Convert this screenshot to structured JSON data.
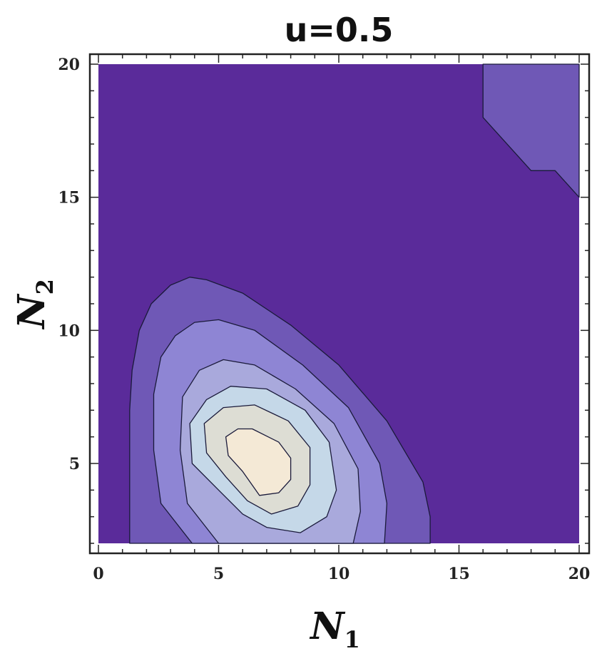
{
  "chart_data": {
    "type": "contour",
    "title": "u=0.5",
    "xlabel": "N",
    "xlabel_subscript": "1",
    "ylabel": "N",
    "ylabel_subscript": "2",
    "xlim": [
      0,
      20
    ],
    "ylim": [
      2,
      20
    ],
    "xticks": [
      "0",
      "5",
      "10",
      "15",
      "20"
    ],
    "yticks": [
      "5",
      "10",
      "15",
      "20"
    ],
    "grid": false,
    "colors": {
      "background": "#5a2b9a",
      "levels": [
        "#6f58b6",
        "#8e85d4",
        "#a9a9dc",
        "#c5d8e8",
        "#ddddd4",
        "#f4e9d6"
      ],
      "contour_line": "#1a1a3a"
    },
    "contours": [
      {
        "level": 1,
        "points": [
          [
            1.3,
            2
          ],
          [
            1.3,
            7
          ],
          [
            1.4,
            8.5
          ],
          [
            1.7,
            10
          ],
          [
            2.2,
            11
          ],
          [
            3,
            11.7
          ],
          [
            3.8,
            12
          ],
          [
            4.5,
            11.9
          ],
          [
            6,
            11.4
          ],
          [
            8,
            10.2
          ],
          [
            10,
            8.7
          ],
          [
            12,
            6.6
          ],
          [
            13.5,
            4.3
          ],
          [
            13.8,
            3
          ],
          [
            13.8,
            2
          ]
        ]
      },
      {
        "level": 2,
        "points": [
          [
            3.9,
            2
          ],
          [
            2.6,
            3.5
          ],
          [
            2.3,
            5.5
          ],
          [
            2.3,
            7.6
          ],
          [
            2.6,
            9
          ],
          [
            3.2,
            9.8
          ],
          [
            4,
            10.3
          ],
          [
            5,
            10.4
          ],
          [
            6.5,
            10
          ],
          [
            8.5,
            8.7
          ],
          [
            10.4,
            7.1
          ],
          [
            11.7,
            5
          ],
          [
            12,
            3.5
          ],
          [
            11.9,
            2
          ]
        ]
      },
      {
        "level": 3,
        "points": [
          [
            5,
            2
          ],
          [
            3.7,
            3.5
          ],
          [
            3.4,
            5.5
          ],
          [
            3.5,
            7.5
          ],
          [
            4.2,
            8.5
          ],
          [
            5.2,
            8.9
          ],
          [
            6.5,
            8.7
          ],
          [
            8.2,
            7.8
          ],
          [
            9.8,
            6.5
          ],
          [
            10.8,
            4.8
          ],
          [
            10.9,
            3.2
          ],
          [
            10.6,
            2
          ]
        ]
      },
      {
        "level": 4,
        "points": [
          [
            5,
            4
          ],
          [
            3.9,
            5
          ],
          [
            3.8,
            6.5
          ],
          [
            4.5,
            7.4
          ],
          [
            5.5,
            7.9
          ],
          [
            7,
            7.8
          ],
          [
            8.6,
            7
          ],
          [
            9.6,
            5.8
          ],
          [
            9.9,
            4
          ],
          [
            9.5,
            3
          ],
          [
            8.4,
            2.4
          ],
          [
            7,
            2.6
          ],
          [
            6,
            3.1
          ]
        ]
      },
      {
        "level": 5,
        "points": [
          [
            5.3,
            4.5
          ],
          [
            4.5,
            5.4
          ],
          [
            4.4,
            6.5
          ],
          [
            5.2,
            7.1
          ],
          [
            6.5,
            7.2
          ],
          [
            7.9,
            6.6
          ],
          [
            8.8,
            5.6
          ],
          [
            8.8,
            4.2
          ],
          [
            8.3,
            3.4
          ],
          [
            7.2,
            3.1
          ],
          [
            6.2,
            3.6
          ]
        ]
      },
      {
        "level": 6,
        "points": [
          [
            6,
            4.7
          ],
          [
            5.4,
            5.3
          ],
          [
            5.3,
            6
          ],
          [
            5.8,
            6.3
          ],
          [
            6.4,
            6.3
          ],
          [
            7.5,
            5.8
          ],
          [
            8,
            5.2
          ],
          [
            8,
            4.4
          ],
          [
            7.5,
            3.9
          ],
          [
            6.7,
            3.8
          ]
        ]
      },
      {
        "level": 1,
        "points": [
          [
            16,
            20
          ],
          [
            16,
            18
          ],
          [
            17.5,
            16.5
          ],
          [
            18,
            16
          ],
          [
            19,
            16
          ],
          [
            20,
            15
          ],
          [
            20,
            20
          ]
        ]
      }
    ]
  }
}
